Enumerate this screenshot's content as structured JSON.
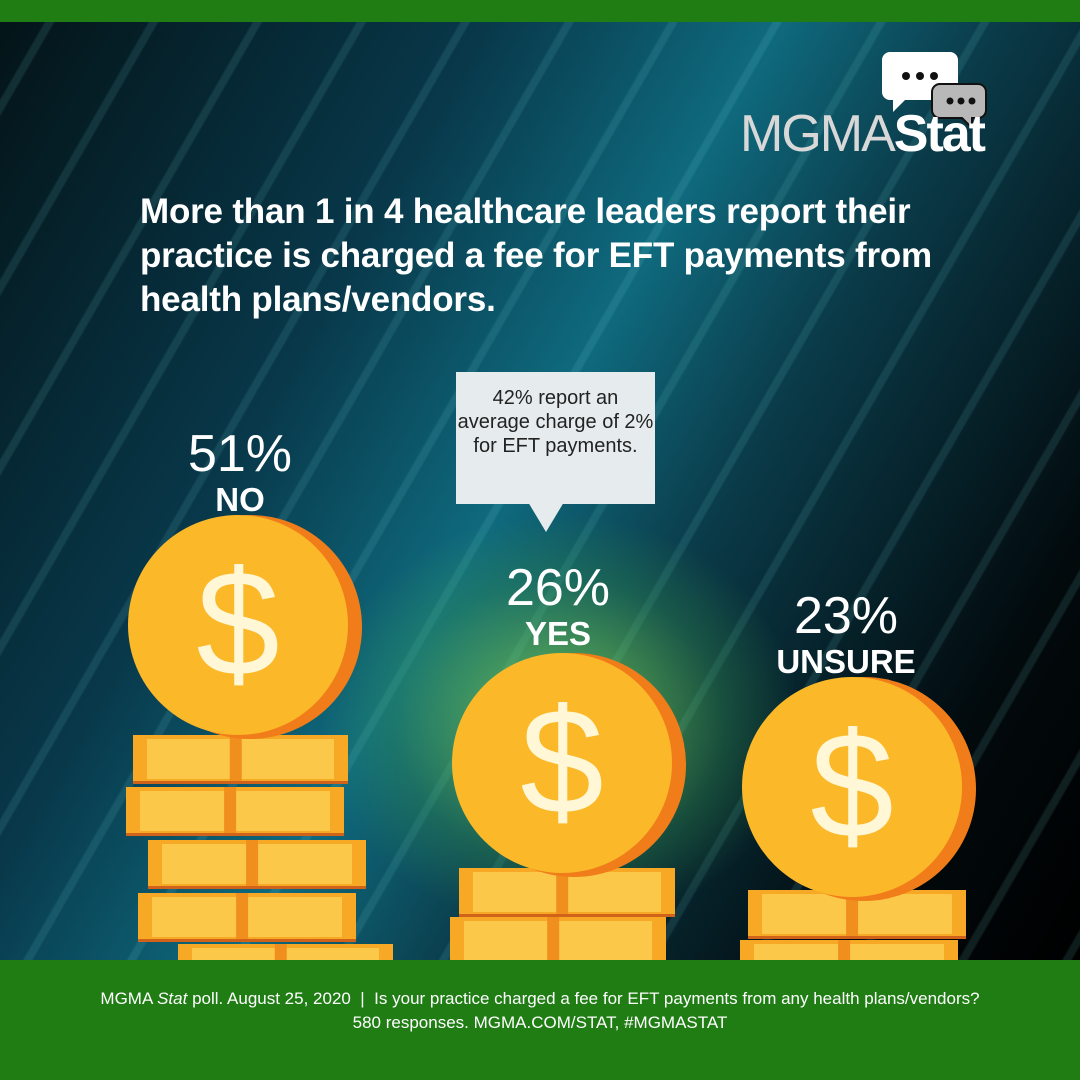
{
  "logo": {
    "text_thin": "MGMA",
    "text_bold": "Stat"
  },
  "headline": "More than 1 in 4 healthcare leaders report their practice is charged a fee for EFT payments from health plans/vendors.",
  "callout": "42% report an average charge of 2% for EFT payments.",
  "footer": {
    "line1_a": "MGMA ",
    "line1_italic": "Stat",
    "line1_b": " poll. August 25, 2020  |  Is your practice charged a fee for EFT payments from any health plans/vendors?",
    "line2": "580 responses. MGMA.COM/STAT, #MGMASTAT"
  },
  "colors": {
    "green_bar": "#1f7d14",
    "coin": "#fbb829",
    "coin_edge": "#f07d1a",
    "dollar": "#fff7d6"
  },
  "chart_data": {
    "type": "bar",
    "categories": [
      "NO",
      "YES",
      "UNSURE"
    ],
    "values": [
      51,
      26,
      23
    ],
    "labels": [
      "51%",
      "26%",
      "23%"
    ],
    "unit": "%"
  }
}
